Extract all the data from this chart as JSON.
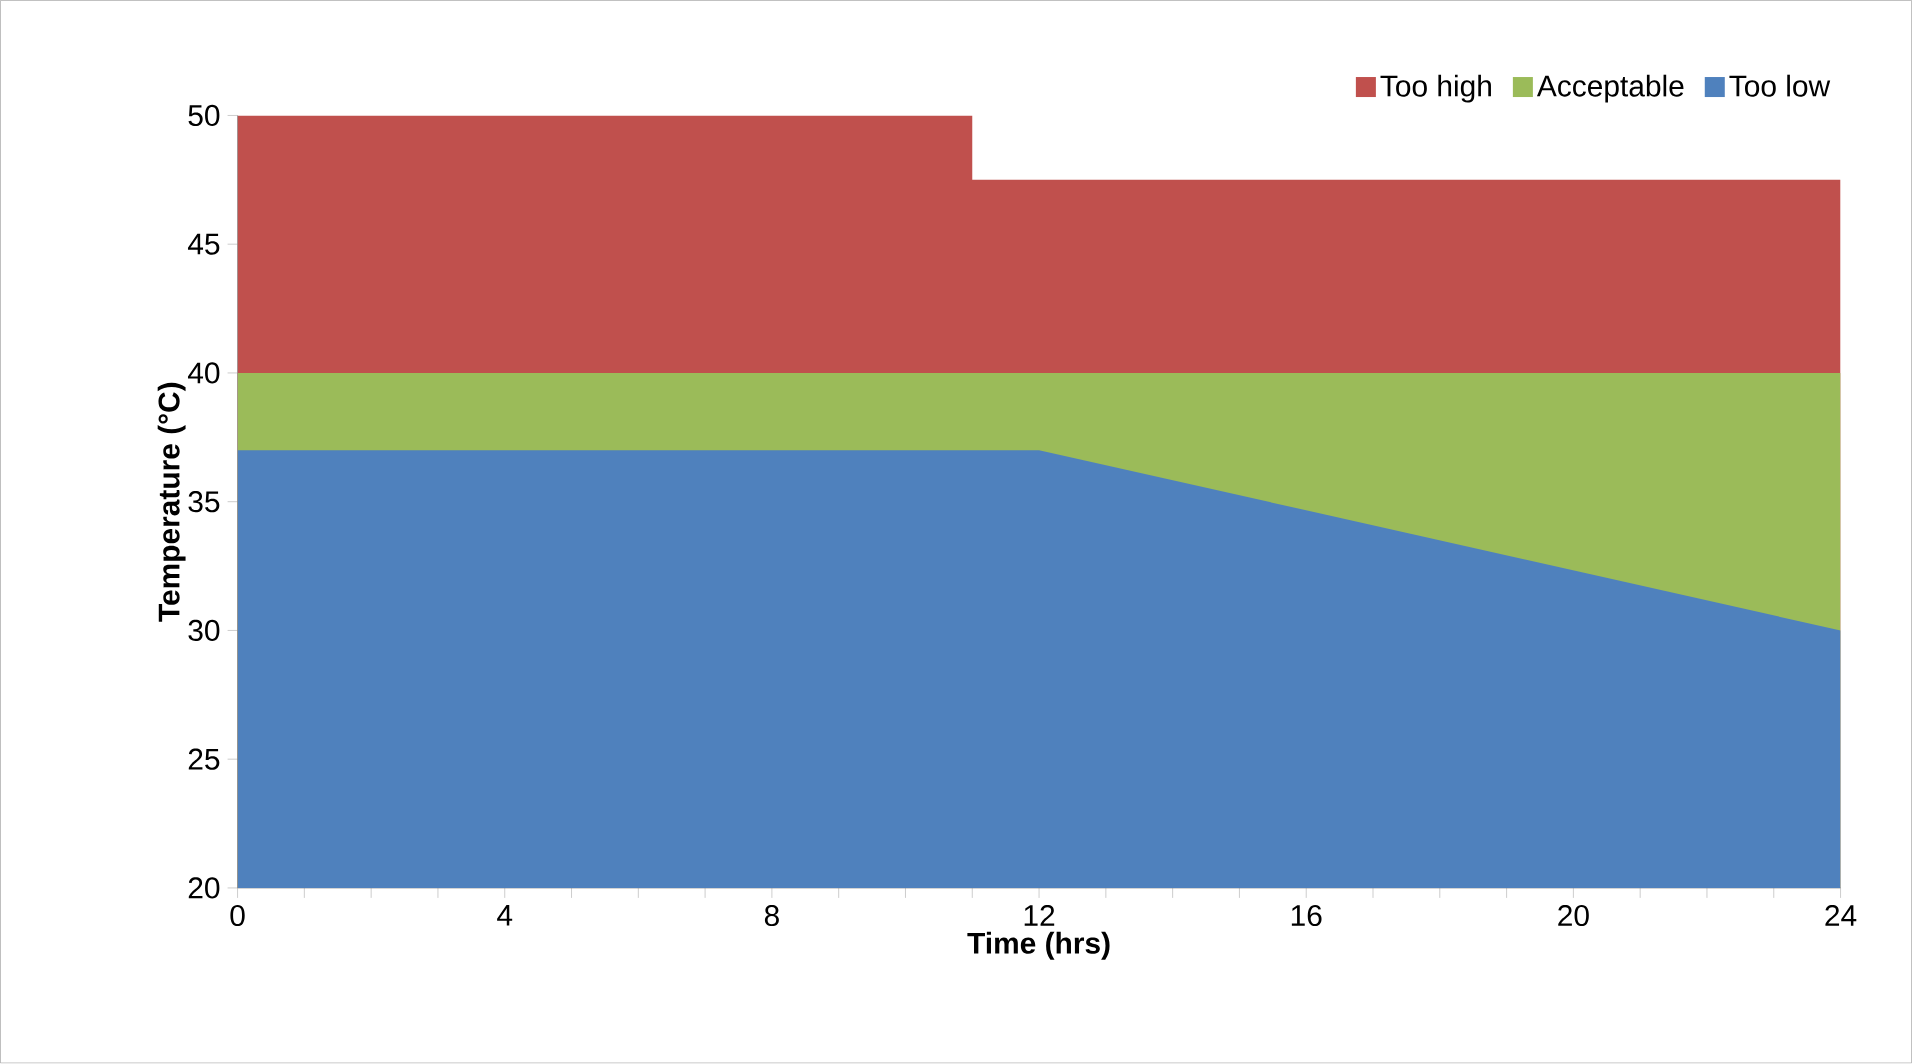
{
  "chart_data": {
    "type": "area",
    "xlabel": "Time (hrs)",
    "ylabel": "Temperature (°C)",
    "x": [
      0,
      11,
      11,
      12,
      24
    ],
    "xlim": [
      0,
      24
    ],
    "xticks": [
      0,
      4,
      8,
      12,
      16,
      20,
      24
    ],
    "ylim": [
      20,
      50
    ],
    "yticks": [
      20,
      25,
      30,
      35,
      40,
      45,
      50
    ],
    "grid": false,
    "legend": "top right",
    "series": [
      {
        "name": "Too high",
        "color": "#c0504d",
        "values": [
          50,
          50,
          47.5,
          47.5,
          47.5
        ]
      },
      {
        "name": "Acceptable",
        "color": "#9bbb59",
        "values": [
          40,
          40,
          40,
          40,
          40
        ]
      },
      {
        "name": "Too low",
        "color": "#4f81bd",
        "values": [
          37,
          37,
          37,
          37,
          30
        ]
      }
    ]
  }
}
